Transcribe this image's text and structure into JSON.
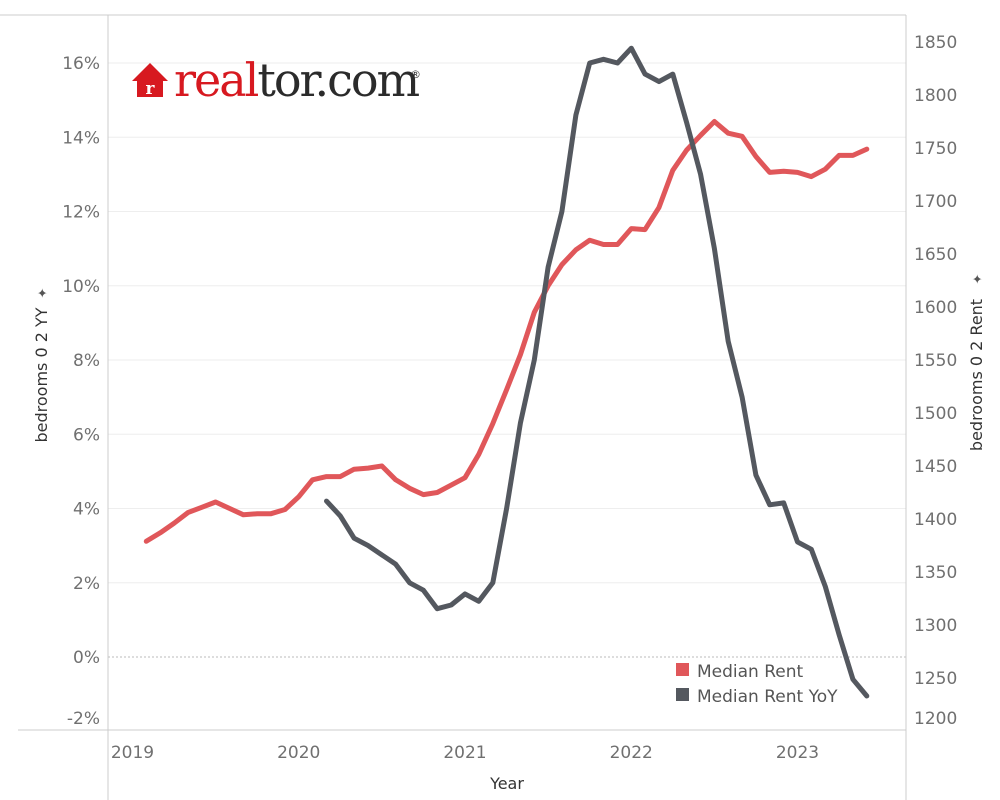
{
  "colors": {
    "rent": "#e0575a",
    "yoy": "#54585f",
    "brand_red": "#d71920",
    "brand_dark": "#2b2b2b",
    "grid": "#eeeeee",
    "axis": "#cccccc"
  },
  "logo": {
    "icon": "house-r-icon",
    "glyph": "r",
    "part1": "real",
    "part2": "tor.com",
    "mark": "®"
  },
  "chart_data": {
    "type": "line",
    "title": "",
    "xlabel": "Year",
    "ylabel_left": "bedrooms 0 2 YY",
    "ylabel_right": "bedrooms 0 2 Rent",
    "pin_icon": "pin-icon",
    "xlim": [
      2019.0,
      2023.75
    ],
    "x_ticks": [
      "2019",
      "2020",
      "2021",
      "2022",
      "2023"
    ],
    "ylim_left": [
      -0.02,
      0.17
    ],
    "y_ticks_left": [
      "16%",
      "14%",
      "12%",
      "10%",
      "8%",
      "6%",
      "4%",
      "2%",
      "0%",
      "-2%"
    ],
    "ylim_right": [
      1200,
      1860
    ],
    "y_ticks_right": [
      "1850",
      "1800",
      "1750",
      "1700",
      "1650",
      "1600",
      "1550",
      "1500",
      "1450",
      "1400",
      "1350",
      "1300",
      "1250",
      "1200"
    ],
    "legend": [
      "Median Rent",
      "Median Rent YoY"
    ],
    "legend_position": "bottom-right",
    "series": [
      {
        "name": "Median Rent",
        "axis": "right",
        "x": [
          2019.083,
          2019.167,
          2019.25,
          2019.333,
          2019.417,
          2019.5,
          2019.583,
          2019.667,
          2019.75,
          2019.833,
          2019.917,
          2020.0,
          2020.083,
          2020.167,
          2020.25,
          2020.333,
          2020.417,
          2020.5,
          2020.583,
          2020.667,
          2020.75,
          2020.833,
          2020.917,
          2021.0,
          2021.083,
          2021.167,
          2021.25,
          2021.333,
          2021.417,
          2021.5,
          2021.583,
          2021.667,
          2021.75,
          2021.833,
          2021.917,
          2022.0,
          2022.083,
          2022.167,
          2022.25,
          2022.333,
          2022.417,
          2022.5,
          2022.583,
          2022.667,
          2022.75,
          2022.833,
          2022.917,
          2023.0,
          2023.083,
          2023.167,
          2023.25,
          2023.333,
          2023.417
        ],
        "values": [
          1379,
          1387,
          1396,
          1406,
          1411,
          1416,
          1410,
          1404,
          1405,
          1405,
          1409,
          1421,
          1437,
          1440,
          1440,
          1447,
          1448,
          1450,
          1437,
          1429,
          1423,
          1425,
          1432,
          1439,
          1461,
          1490,
          1522,
          1555,
          1595,
          1620,
          1640,
          1654,
          1663,
          1659,
          1659,
          1674,
          1673,
          1694,
          1729,
          1748,
          1762,
          1775,
          1764,
          1761,
          1742,
          1727,
          1728,
          1727,
          1723,
          1730,
          1743,
          1743,
          1749
        ]
      },
      {
        "name": "Median Rent YoY",
        "axis": "left",
        "x": [
          2020.167,
          2020.25,
          2020.333,
          2020.417,
          2020.5,
          2020.583,
          2020.667,
          2020.75,
          2020.833,
          2020.917,
          2021.0,
          2021.083,
          2021.167,
          2021.25,
          2021.333,
          2021.417,
          2021.5,
          2021.583,
          2021.667,
          2021.75,
          2021.833,
          2021.917,
          2022.0,
          2022.083,
          2022.167,
          2022.25,
          2022.333,
          2022.417,
          2022.5,
          2022.583,
          2022.667,
          2022.75,
          2022.833,
          2022.917,
          2023.0,
          2023.083,
          2023.167,
          2023.25,
          2023.333,
          2023.417
        ],
        "values": [
          0.042,
          0.038,
          0.032,
          0.03,
          0.0275,
          0.025,
          0.02,
          0.018,
          0.013,
          0.014,
          0.017,
          0.015,
          0.02,
          0.04,
          0.063,
          0.08,
          0.105,
          0.12,
          0.146,
          0.16,
          0.161,
          0.16,
          0.164,
          0.157,
          0.155,
          0.157,
          0.144,
          0.13,
          0.11,
          0.085,
          0.07,
          0.049,
          0.041,
          0.0415,
          0.031,
          0.029,
          0.019,
          0.006,
          -0.006,
          -0.0105
        ]
      }
    ]
  }
}
